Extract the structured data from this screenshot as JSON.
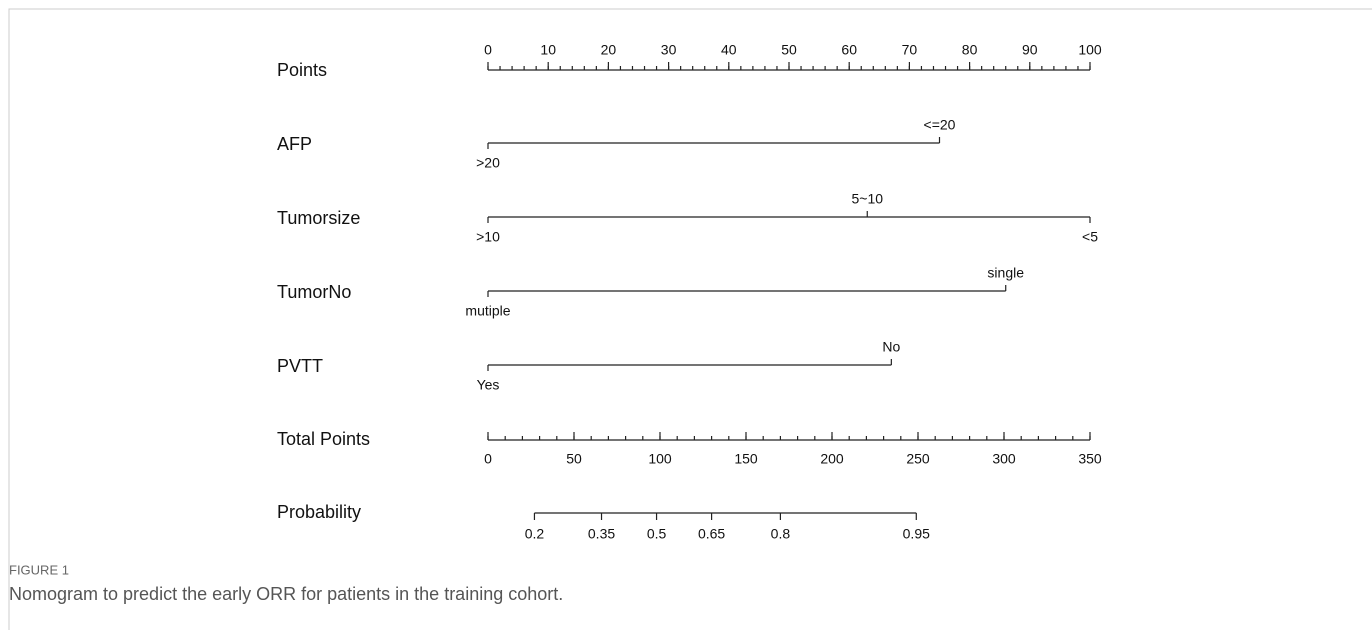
{
  "chart_data": {
    "type": "nomogram",
    "points_axis": {
      "name": "Points",
      "xlim": [
        0,
        100
      ],
      "xticks": [
        0,
        10,
        20,
        30,
        40,
        50,
        60,
        70,
        80,
        90,
        100
      ],
      "minor_tick_step": 2
    },
    "variables": [
      {
        "name": "AFP",
        "levels": [
          {
            "label": ">20",
            "points": 0,
            "side": "below"
          },
          {
            "label": "<=20",
            "points": 75,
            "side": "above"
          }
        ]
      },
      {
        "name": "Tumorsize",
        "levels": [
          {
            "label": ">10",
            "points": 0,
            "side": "below"
          },
          {
            "label": "5~10",
            "points": 63,
            "side": "above"
          },
          {
            "label": "<5",
            "points": 100,
            "side": "below"
          }
        ]
      },
      {
        "name": "TumorNo",
        "levels": [
          {
            "label": "mutiple",
            "points": 0,
            "side": "below"
          },
          {
            "label": "single",
            "points": 86,
            "side": "above"
          }
        ]
      },
      {
        "name": "PVTT",
        "levels": [
          {
            "label": "Yes",
            "points": 0,
            "side": "below"
          },
          {
            "label": "No",
            "points": 67,
            "side": "above"
          }
        ]
      }
    ],
    "total_points": {
      "name": "Total Points",
      "xlim": [
        0,
        350
      ],
      "xticks": [
        0,
        50,
        100,
        150,
        200,
        250,
        300,
        350
      ],
      "minor_tick_step": 10
    },
    "probability": {
      "name": "Probability",
      "ticks": [
        0.2,
        0.35,
        0.5,
        0.65,
        0.8,
        0.95
      ],
      "points": [
        27,
        66,
        98,
        130,
        170,
        249
      ]
    }
  },
  "figure": {
    "label": "FIGURE 1",
    "caption": "Nomogram to predict the early ORR for patients in the training cohort."
  }
}
